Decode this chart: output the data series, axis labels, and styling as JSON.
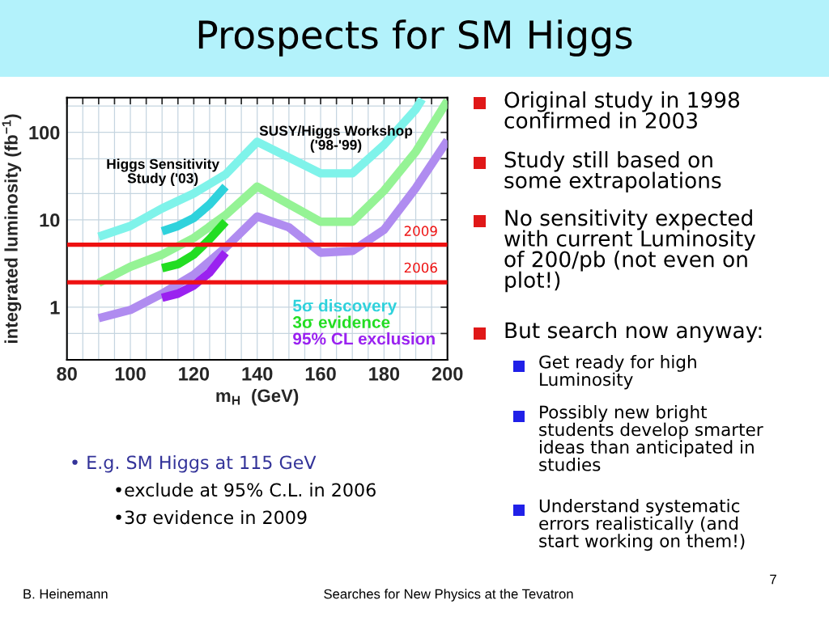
{
  "chart_data": {
    "type": "line",
    "title": "Prospects for SM Higgs",
    "xlabel": "m$_{H}$  (GeV)",
    "ylabel": "integrated luminosity (fb$^{−1}$)",
    "log": "y",
    "grid": true,
    "legend": "bottom right",
    "xlim": [
      80,
      200
    ],
    "ylim": [
      0.25,
      250
    ],
    "xticks": [
      80,
      {
        "value": 85,
        "label": null
      },
      {
        "value": 90,
        "label": null
      },
      {
        "value": 95,
        "label": null
      },
      100,
      {
        "value": 105,
        "label": null
      },
      {
        "value": 110,
        "label": null
      },
      {
        "value": 115,
        "label": null
      },
      120,
      {
        "value": 125,
        "label": null
      },
      {
        "value": 130,
        "label": null
      },
      {
        "value": 135,
        "label": null
      },
      140,
      {
        "value": 145,
        "label": null
      },
      {
        "value": 150,
        "label": null
      },
      {
        "value": 155,
        "label": null
      },
      160,
      {
        "value": 165,
        "label": null
      },
      {
        "value": 170,
        "label": null
      },
      {
        "value": 175,
        "label": null
      },
      180,
      {
        "value": 185,
        "label": null
      },
      {
        "value": 190,
        "label": null
      },
      {
        "value": 195,
        "label": null
      },
      200
    ],
    "yticks": [
      {
        "value": 0.5,
        "label": null
      },
      1,
      10,
      {
        "value": 20,
        "label": null
      },
      {
        "value": 50,
        "label": null
      },
      100,
      {
        "value": 200,
        "label": null
      }
    ],
    "series": [
      {
        "color": "#7ff3ea",
        "x": [
          90,
          100,
          110,
          120,
          130,
          140,
          160,
          170,
          180,
          190,
          192
        ],
        "values": [
          6.4,
          8.5,
          13.5,
          20,
          33,
          78,
          34,
          34,
          72,
          183,
          240
        ]
      },
      {
        "color": "#95f395",
        "x": [
          90,
          100,
          110,
          120,
          130,
          140,
          160,
          170,
          180,
          190,
          200
        ],
        "values": [
          1.9,
          2.9,
          4.0,
          6.2,
          11.3,
          24,
          9.5,
          9.5,
          21.5,
          60,
          230
        ]
      },
      {
        "color": "#b08cf0",
        "x": [
          90,
          100,
          110,
          120,
          130,
          140,
          150,
          160,
          170,
          180,
          190,
          200
        ],
        "values": [
          0.75,
          0.93,
          1.43,
          2.35,
          4.8,
          10.9,
          8.2,
          4.2,
          4.4,
          7.7,
          23,
          81
        ]
      },
      {
        "name": "5σ discovery",
        "color": "#2fd2dc",
        "x": [
          110,
          115,
          120,
          125,
          130
        ],
        "values": [
          7.4,
          8.5,
          10.5,
          15,
          24
        ]
      },
      {
        "name": "3σ evidence",
        "color": "#22dd22",
        "x": [
          110,
          115,
          120,
          125,
          130
        ],
        "values": [
          2.8,
          3.1,
          4.0,
          6.0,
          9.5
        ]
      },
      {
        "name": "95% CL exclusion",
        "color": "#9a22f0",
        "x": [
          110,
          115,
          120,
          125,
          130
        ],
        "values": [
          1.28,
          1.43,
          1.77,
          2.5,
          4.2
        ]
      }
    ],
    "ref_lines": [
      {
        "axis": "y",
        "value": 5.2,
        "color": "#ee1111"
      },
      {
        "axis": "y",
        "value": 1.93,
        "color": "#ee1111"
      }
    ],
    "annotations": [
      "Higgs Sensitivity\nStudy ('03)",
      "SUSY/Higgs Workshop\n('98-'99)",
      "Original study in 1998\nconfirmed in 2003",
      "Study still based on\nsome extrapolations",
      "No sensitivity expected\nwith current Luminosity\nof 200/pb (not even on\nplot!)",
      "But search now anyway:",
      "Get ready for high\nLuminosity",
      "Possibly new bright\nstudents develop smarter\nideas than anticipated in\nstudies",
      "Understand systematic\nerrors realistically (and\nstart working on them!)",
      "• E.g. SM Higgs at 115 GeV",
      "•exclude at 95% C.L. in 2006",
      "•3σ evidence in 2009",
      "B. Heinemann",
      "Searches for New Physics at the Tevatron",
      "7",
      "2009",
      "2006"
    ]
  }
}
